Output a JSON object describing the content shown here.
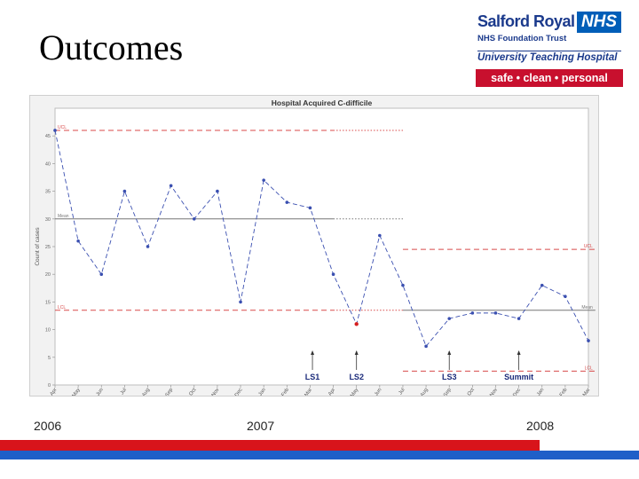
{
  "slide": {
    "title": "Outcomes",
    "year_labels": [
      "2006",
      "2007",
      "2008"
    ]
  },
  "logo": {
    "organisation": "Salford Royal",
    "nhs_mark": "NHS",
    "trust_name": "NHS Foundation Trust",
    "subtitle": "University Teaching Hospital",
    "tagline": "safe • clean • personal"
  },
  "colors": {
    "series": "#3a4fb0",
    "highlight_point": "#d61f1f",
    "control_limit": "#d84a4a",
    "mean_line": "#777777",
    "logo_blue": "#005eb8",
    "logo_red": "#c8102e",
    "footer_red": "#d8141b",
    "footer_blue": "#1f5fc8"
  },
  "chart_data": {
    "type": "line",
    "title": "Hospital Acquired C-difficile",
    "ylabel": "Count of cases",
    "xlabel": "",
    "ylim": [
      0,
      50
    ],
    "yticks": [
      0,
      5,
      10,
      15,
      20,
      25,
      30,
      35,
      40,
      45
    ],
    "grid": false,
    "categories": [
      "Apr",
      "May",
      "Jun",
      "Jul",
      "Aug",
      "Sep",
      "Oct",
      "Nov",
      "Dec",
      "Jan",
      "Feb",
      "Mar",
      "Apr",
      "May",
      "Jun",
      "Jul",
      "Aug",
      "Sep",
      "Oct",
      "Nov",
      "Dec",
      "Jan",
      "Feb",
      "Mar"
    ],
    "series": [
      {
        "values": [
          46,
          26,
          20,
          35,
          25,
          36,
          30,
          35,
          15,
          37,
          33,
          32,
          20,
          11,
          27,
          18,
          7,
          12,
          13,
          13,
          12,
          18,
          16,
          8
        ]
      }
    ],
    "highlight_point_index": 13,
    "control_segments": [
      {
        "kind": "UCL",
        "label": "UCL",
        "value": 46,
        "start_index": 0,
        "end_index": 15,
        "dotted_from_index": 12
      },
      {
        "kind": "mean",
        "label": "Mean",
        "value": 30,
        "start_index": 0,
        "end_index": 15,
        "dotted_from_index": 12
      },
      {
        "kind": "LCL",
        "label": "LCL",
        "value": 13.5,
        "start_index": 0,
        "end_index": 15,
        "dotted_from_index": 12
      },
      {
        "kind": "UCL",
        "label": "UCL",
        "value": 24.5,
        "start_index": 15,
        "end_index": 23.3
      },
      {
        "kind": "mean",
        "label": "Mean",
        "value": 13.5,
        "start_index": 15,
        "end_index": 23.3
      },
      {
        "kind": "LCL",
        "label": "LCL",
        "value": 2.5,
        "start_index": 15,
        "end_index": 23.3
      }
    ],
    "annotations": [
      {
        "label": "LS1",
        "at_index": 11.1
      },
      {
        "label": "LS2",
        "at_index": 13.0
      },
      {
        "label": "LS3",
        "at_index": 17.0
      },
      {
        "label": "Summit",
        "at_index": 20.0
      }
    ]
  }
}
